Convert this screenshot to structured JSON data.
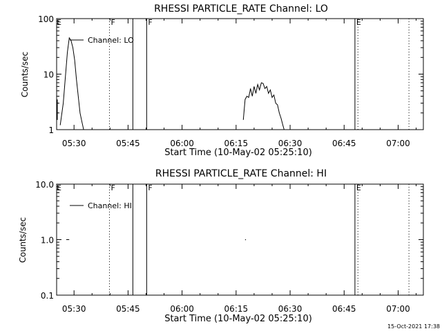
{
  "chart_data": [
    {
      "type": "line",
      "title": "RHESSI PARTICLE_RATE Channel: LO",
      "xlabel": "Start Time (10-May-02 05:25:10)",
      "ylabel": "Counts/sec",
      "y_scale": "log",
      "ylim": [
        1,
        100
      ],
      "xlim": [
        "05:25:10",
        "07:07:00"
      ],
      "x_ticks": [
        "05:30",
        "05:45",
        "06:00",
        "06:15",
        "06:30",
        "06:45",
        "07:00"
      ],
      "y_ticks": [
        "1",
        "10",
        "100"
      ],
      "legend": "Channel: LO",
      "legend_placement": "top-left",
      "series": [
        {
          "name": "Channel: LO",
          "x": [
            "05:25:10",
            "05:26:10",
            "05:27:00",
            "05:27:40",
            "05:28:10",
            "05:28:40",
            "05:29:10",
            "05:29:40",
            "05:30:10",
            "05:30:40",
            "05:31:10",
            "05:31:40",
            "05:32:10",
            "05:32:40",
            "06:17:00",
            "06:17:30",
            "06:18:00",
            "06:18:30",
            "06:19:00",
            "06:19:30",
            "06:20:00",
            "06:20:30",
            "06:21:00",
            "06:21:30",
            "06:22:00",
            "06:22:30",
            "06:23:00",
            "06:23:30",
            "06:24:00",
            "06:24:30",
            "06:25:00",
            "06:25:30",
            "06:26:00",
            "06:26:30",
            "06:27:00",
            "06:27:30",
            "06:28:00",
            "06:28:20"
          ],
          "y": [
            null,
            1.2,
            3,
            10,
            25,
            45,
            40,
            30,
            18,
            8,
            4,
            2,
            1.4,
            1,
            1.5,
            3.5,
            4,
            3.8,
            5.5,
            4,
            6,
            4.5,
            6.5,
            5.2,
            7,
            6.8,
            5.5,
            6,
            4.5,
            5.2,
            3.8,
            4.2,
            3,
            2.8,
            2,
            1.6,
            1.2,
            1
          ]
        }
      ],
      "flag_lines": [
        {
          "time": "05:39:50",
          "style": "dotted",
          "label": "F"
        },
        {
          "time": "05:46:20",
          "style": "solid",
          "label": ""
        },
        {
          "time": "05:50:10",
          "style": "solid",
          "label": "F"
        },
        {
          "time": "06:48:00",
          "style": "solid",
          "label": "E"
        },
        {
          "time": "06:48:50",
          "style": "dotted",
          "label": ""
        },
        {
          "time": "07:03:00",
          "style": "dotted",
          "label": ""
        }
      ],
      "corner_label": "E"
    },
    {
      "type": "line",
      "title": "RHESSI PARTICLE_RATE Channel: HI",
      "xlabel": "Start Time (10-May-02 05:25:10)",
      "ylabel": "Counts/sec",
      "y_scale": "log",
      "ylim": [
        0.1,
        10
      ],
      "xlim": [
        "05:25:10",
        "07:07:00"
      ],
      "x_ticks": [
        "05:30",
        "05:45",
        "06:00",
        "06:15",
        "06:30",
        "06:45",
        "07:00"
      ],
      "y_ticks": [
        "0.1",
        "1.0",
        "10.0"
      ],
      "legend": "Channel: HI",
      "legend_placement": "top-left",
      "series": [
        {
          "name": "Channel: HI",
          "x": [
            "05:27:50",
            "05:28:40",
            "06:17:30"
          ],
          "y": [
            1.0,
            1.0,
            1.0
          ]
        }
      ],
      "flag_lines": [
        {
          "time": "05:39:50",
          "style": "dotted",
          "label": "F"
        },
        {
          "time": "05:46:20",
          "style": "solid",
          "label": ""
        },
        {
          "time": "05:50:10",
          "style": "solid",
          "label": "F"
        },
        {
          "time": "06:48:00",
          "style": "solid",
          "label": "E"
        },
        {
          "time": "06:48:50",
          "style": "dotted",
          "label": ""
        },
        {
          "time": "07:03:00",
          "style": "dotted",
          "label": ""
        }
      ],
      "corner_label": "E"
    }
  ],
  "footer": {
    "timestamp": "15-Oct-2021 17:38"
  }
}
